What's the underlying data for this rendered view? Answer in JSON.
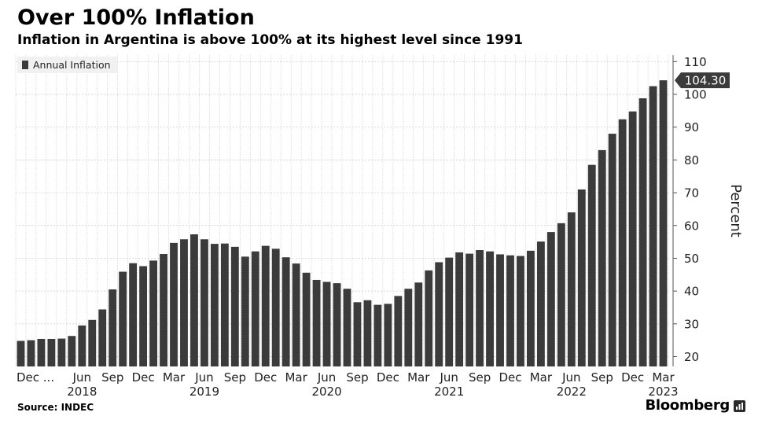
{
  "header": {
    "title": "Over 100% Inflation",
    "subtitle": "Inflation in Argentina is above 100% at its highest level since 1991"
  },
  "footer": {
    "source": "Source: INDEC",
    "brand": "Bloomberg"
  },
  "colors": {
    "bar": "#3b3b3b",
    "grid": "#c8c8c8",
    "callout_bg": "#3b3b3b",
    "callout_text": "#ffffff",
    "legend_bg": "#f1f1f1"
  },
  "chart_data": {
    "type": "bar",
    "title": "Over 100% Inflation",
    "subtitle": "Inflation in Argentina is above 100% at its highest level since 1991",
    "ylabel": "Percent",
    "xlabel": "",
    "ylim": [
      17,
      112
    ],
    "yticks": [
      20,
      30,
      40,
      50,
      60,
      70,
      80,
      90,
      100,
      110
    ],
    "y_axis_position": "right",
    "grid": true,
    "legend": {
      "position": "top-left",
      "entries": [
        "Annual Inflation"
      ]
    },
    "callout": {
      "label": "104.30",
      "value": 104.3
    },
    "x_labels": [
      {
        "index": 0,
        "month": "Dec ...",
        "year": ""
      },
      {
        "index": 6,
        "month": "Jun",
        "year": "2018"
      },
      {
        "index": 9,
        "month": "Sep",
        "year": ""
      },
      {
        "index": 12,
        "month": "Dec",
        "year": ""
      },
      {
        "index": 15,
        "month": "Mar",
        "year": ""
      },
      {
        "index": 18,
        "month": "Jun",
        "year": "2019"
      },
      {
        "index": 21,
        "month": "Sep",
        "year": ""
      },
      {
        "index": 24,
        "month": "Dec",
        "year": ""
      },
      {
        "index": 27,
        "month": "Mar",
        "year": ""
      },
      {
        "index": 30,
        "month": "Jun",
        "year": "2020"
      },
      {
        "index": 33,
        "month": "Sep",
        "year": ""
      },
      {
        "index": 36,
        "month": "Dec",
        "year": ""
      },
      {
        "index": 39,
        "month": "Mar",
        "year": ""
      },
      {
        "index": 42,
        "month": "Jun",
        "year": "2021"
      },
      {
        "index": 45,
        "month": "Sep",
        "year": ""
      },
      {
        "index": 48,
        "month": "Dec",
        "year": ""
      },
      {
        "index": 51,
        "month": "Mar",
        "year": ""
      },
      {
        "index": 54,
        "month": "Jun",
        "year": "2022"
      },
      {
        "index": 57,
        "month": "Sep",
        "year": ""
      },
      {
        "index": 60,
        "month": "Dec",
        "year": ""
      },
      {
        "index": 63,
        "month": "Mar",
        "year": "2023"
      }
    ],
    "series": [
      {
        "name": "Annual Inflation",
        "values": [
          24.8,
          25.0,
          25.4,
          25.4,
          25.5,
          26.3,
          29.5,
          31.2,
          34.4,
          40.5,
          45.9,
          48.5,
          47.6,
          49.3,
          51.3,
          54.7,
          55.8,
          57.3,
          55.8,
          54.4,
          54.5,
          53.5,
          50.5,
          52.1,
          53.8,
          52.9,
          50.3,
          48.4,
          45.6,
          43.4,
          42.8,
          42.4,
          40.7,
          36.6,
          37.2,
          35.8,
          36.1,
          38.5,
          40.7,
          42.6,
          46.3,
          48.8,
          50.2,
          51.8,
          51.4,
          52.5,
          52.1,
          51.2,
          50.9,
          50.7,
          52.3,
          55.1,
          58.0,
          60.7,
          64.0,
          71.0,
          78.5,
          83.0,
          88.0,
          92.4,
          94.8,
          98.8,
          102.5,
          104.3
        ]
      }
    ]
  }
}
